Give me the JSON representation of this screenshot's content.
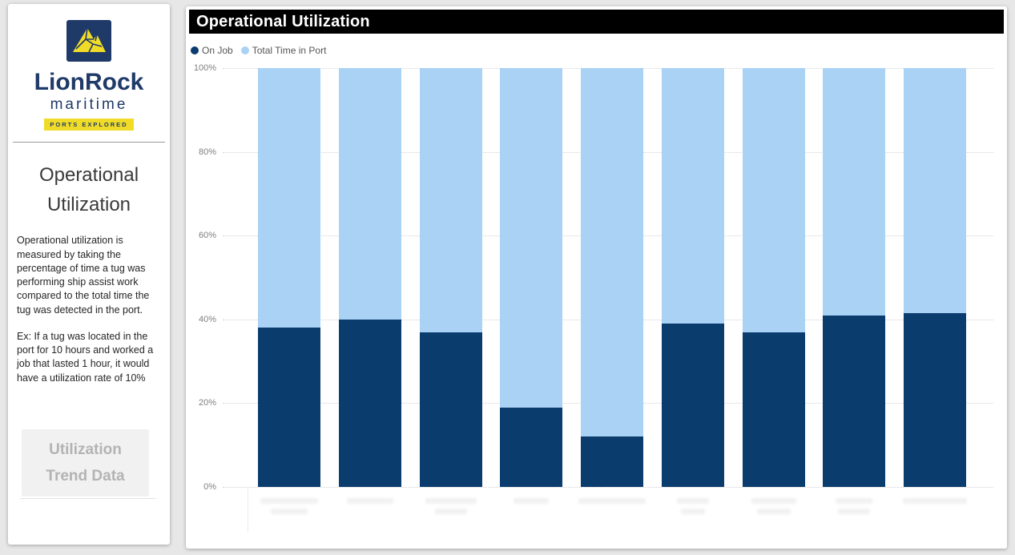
{
  "sidebar": {
    "logo": {
      "brand": "LionRock",
      "sub_brand": "maritime",
      "tagline": "PORTS EXPLORED"
    },
    "title": "Operational Utilization",
    "description": "Operational utilization is measured by taking the percentage of time a tug was performing ship assist work compared to the total time the tug was detected in the port.",
    "example": "Ex: If a tug was located in the port for 10 hours and worked a job that lasted 1 hour, it would have a utilization rate of 10%",
    "button_label": "Utilization Trend Data"
  },
  "main": {
    "header_title": "Operational Utilization"
  },
  "chart_data": {
    "type": "bar",
    "stacked": true,
    "stacked_to_100_percent": true,
    "title": "Operational Utilization",
    "xlabel": "",
    "ylabel": "",
    "ylim": [
      0,
      100
    ],
    "y_ticks": [
      "0%",
      "20%",
      "40%",
      "60%",
      "80%",
      "100%"
    ],
    "grid": "dotted-horizontal",
    "legend_position": "top-left",
    "categories_redacted": true,
    "categories": [
      "",
      "",
      "",
      "",
      "",
      "",
      "",
      "",
      ""
    ],
    "series": [
      {
        "name": "On Job",
        "color": "#0b3c6e",
        "values": [
          38,
          40,
          37,
          19,
          12,
          39,
          37,
          41,
          41.5
        ]
      },
      {
        "name": "Total Time in Port",
        "color": "#a9d2f5",
        "values": [
          62,
          60,
          63,
          81,
          88,
          61,
          63,
          59,
          58.5
        ]
      }
    ]
  },
  "colors": {
    "on_job": "#0b3c6e",
    "total_time_in_port": "#a9d2f5",
    "header_bar": "#000000",
    "brand_navy": "#1f3a68",
    "brand_yellow": "#f0dc28",
    "page_background": "#e7e7e7"
  }
}
